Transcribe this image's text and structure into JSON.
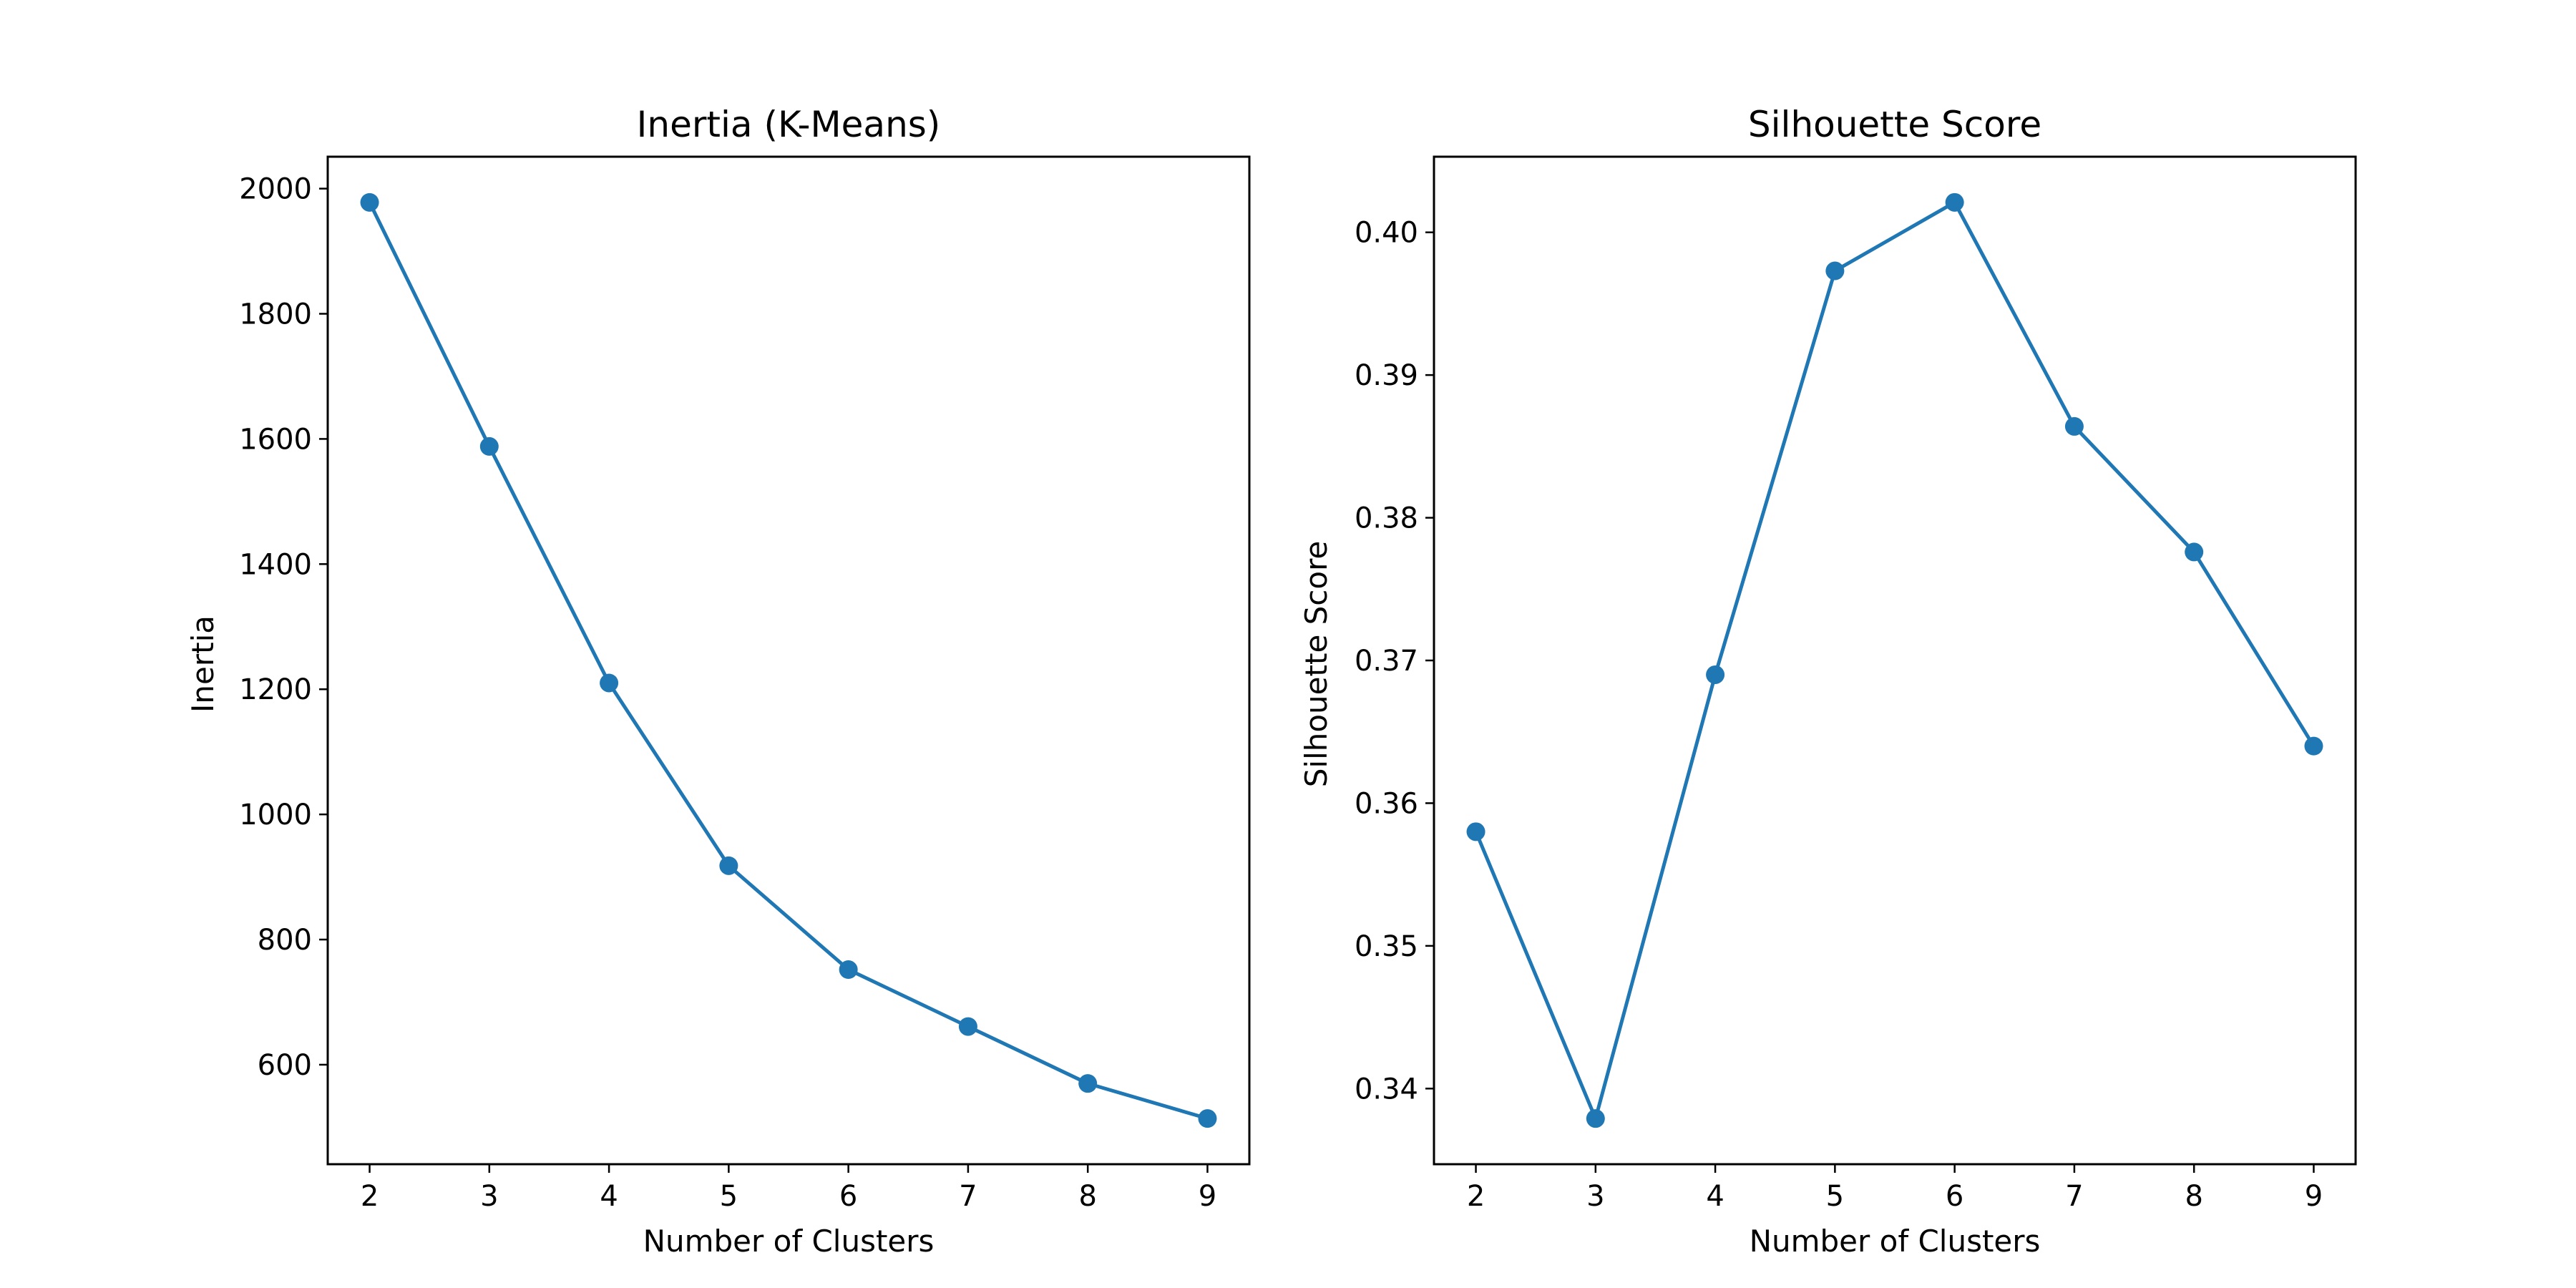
{
  "chart_data": [
    {
      "type": "line",
      "title": "Inertia (K-Means)",
      "xlabel": "Number of Clusters",
      "ylabel": "Inertia",
      "x": [
        2,
        3,
        4,
        5,
        6,
        7,
        8,
        9
      ],
      "series": [
        {
          "values": [
            1978,
            1588,
            1210,
            918,
            752,
            661,
            570,
            514
          ]
        }
      ],
      "xlim": [
        1.65,
        9.35
      ],
      "ylim": [
        441,
        2051
      ],
      "xticks": [
        "2",
        "3",
        "4",
        "5",
        "6",
        "7",
        "8",
        "9"
      ],
      "yticks": [
        "600",
        "800",
        "1000",
        "1200",
        "1400",
        "1600",
        "1800",
        "2000"
      ],
      "yticks_values": [
        600,
        800,
        1000,
        1200,
        1400,
        1600,
        1800,
        2000
      ],
      "grid": false,
      "marker": "circle",
      "color": "#1f77b4"
    },
    {
      "type": "line",
      "title": "Silhouette Score",
      "xlabel": "Number of Clusters",
      "ylabel": "Silhouette Score",
      "x": [
        2,
        3,
        4,
        5,
        6,
        7,
        8,
        9
      ],
      "series": [
        {
          "values": [
            0.358,
            0.3379,
            0.369,
            0.3973,
            0.4021,
            0.3864,
            0.3776,
            0.364
          ]
        }
      ],
      "xlim": [
        1.65,
        9.35
      ],
      "ylim": [
        0.3347,
        0.4053
      ],
      "xticks": [
        "2",
        "3",
        "4",
        "5",
        "6",
        "7",
        "8",
        "9"
      ],
      "yticks": [
        "0.34",
        "0.35",
        "0.36",
        "0.37",
        "0.38",
        "0.39",
        "0.40"
      ],
      "yticks_values": [
        0.34,
        0.35,
        0.36,
        0.37,
        0.38,
        0.39,
        0.4
      ],
      "grid": false,
      "marker": "circle",
      "color": "#1f77b4"
    }
  ]
}
